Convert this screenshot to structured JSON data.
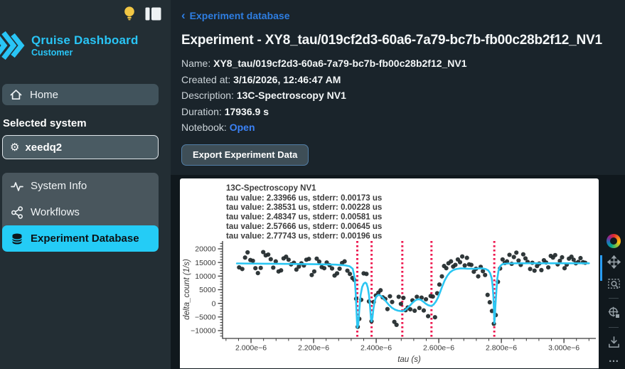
{
  "app": {
    "name": "Qruise Dashboard",
    "audience": "Customer"
  },
  "sidebar": {
    "home": "Home",
    "selected_system_label": "Selected system",
    "system_value": "xeedq2",
    "nav": [
      {
        "label": "System Info",
        "active": false
      },
      {
        "label": "Workflows",
        "active": false
      },
      {
        "label": "Experiment Database",
        "active": true
      }
    ]
  },
  "header": {
    "back": "‹",
    "breadcrumb": "Experiment database",
    "title": "Experiment - XY8_tau/019cf2d3-60a6-7a79-bc7b-fb00c28b2f12_NV1"
  },
  "meta": {
    "name": {
      "label": "Name:",
      "value": "XY8_tau/019cf2d3-60a6-7a79-bc7b-fb00c28b2f12_NV1"
    },
    "created": {
      "label": "Created at:",
      "value": "3/16/2026, 12:46:47 AM"
    },
    "description": {
      "label": "Description:",
      "value": "13C-Spectroscopy NV1"
    },
    "duration": {
      "label": "Duration:",
      "value": "17936.9 s"
    },
    "notebook": {
      "label": "Notebook:",
      "link": "Open"
    }
  },
  "actions": {
    "export": "Export Experiment Data"
  },
  "chart_toolbar": {
    "icons": [
      "plotly-logo",
      "pan",
      "box-zoom",
      "zoom-reset",
      "download"
    ],
    "more": "…"
  },
  "colors": {
    "accent": "#24ccf6",
    "link": "#3b82f6",
    "vline": "#ed174f",
    "fit": "#2bc6f2",
    "scatter": "#20292b"
  },
  "chart_data": {
    "type": "scatter",
    "title": "13C-Spectroscopy NV1",
    "annotations": [
      "tau value: 2.33966 us, stderr: 0.00173 us",
      "tau value: 2.38531 us, stderr: 0.00228 us",
      "tau value: 2.48347 us, stderr: 0.00581 us",
      "tau value: 2.57666 us, stderr: 0.00645 us",
      "tau value: 2.77743 us, stderr: 0.00196 us"
    ],
    "xlabel": "tau (s)",
    "ylabel": "delta_count (1/s)",
    "xlim_us": [
      1.909,
      3.102
    ],
    "ylim": [
      -12870,
      22870
    ],
    "x_ticks": [
      {
        "v": 2.0,
        "label": "2.000e−6"
      },
      {
        "v": 2.2,
        "label": "2.200e−6"
      },
      {
        "v": 2.4,
        "label": "2.400e−6"
      },
      {
        "v": 2.6,
        "label": "2.600e−6"
      },
      {
        "v": 2.8,
        "label": "2.800e−6"
      },
      {
        "v": 3.0,
        "label": "3.000e−6"
      }
    ],
    "x_minor_step_us": 0.04,
    "y_ticks": [
      {
        "v": -10000,
        "label": "−10000"
      },
      {
        "v": -5000,
        "label": "−5000"
      },
      {
        "v": 0,
        "label": "0"
      },
      {
        "v": 5000,
        "label": "5000"
      },
      {
        "v": 10000,
        "label": "10000"
      },
      {
        "v": 15000,
        "label": "15000"
      },
      {
        "v": 20000,
        "label": "20000"
      }
    ],
    "y_minor_step": 1000,
    "fit_tau_lines_us": [
      2.33966,
      2.38531,
      2.48347,
      2.57666,
      2.77743
    ],
    "scatter_points_us": [
      [
        1.962,
        13200
      ],
      [
        1.972,
        12600
      ],
      [
        1.981,
        16800
      ],
      [
        1.989,
        18700
      ],
      [
        1.998,
        15900
      ],
      [
        2.006,
        15600
      ],
      [
        2.014,
        12900
      ],
      [
        2.022,
        11100
      ],
      [
        2.031,
        13000
      ],
      [
        2.039,
        18800
      ],
      [
        2.047,
        17600
      ],
      [
        2.055,
        17900
      ],
      [
        2.063,
        16200
      ],
      [
        2.071,
        13100
      ],
      [
        2.079,
        15400
      ],
      [
        2.088,
        11700
      ],
      [
        2.096,
        12100
      ],
      [
        2.104,
        16500
      ],
      [
        2.112,
        17100
      ],
      [
        2.12,
        16000
      ],
      [
        2.128,
        14300
      ],
      [
        2.137,
        14900
      ],
      [
        2.145,
        12400
      ],
      [
        2.153,
        13500
      ],
      [
        2.161,
        14700
      ],
      [
        2.169,
        13900
      ],
      [
        2.177,
        16000
      ],
      [
        2.185,
        16300
      ],
      [
        2.194,
        10400
      ],
      [
        2.202,
        11700
      ],
      [
        2.21,
        16400
      ],
      [
        2.218,
        15300
      ],
      [
        2.226,
        13300
      ],
      [
        2.234,
        12900
      ],
      [
        2.242,
        15000
      ],
      [
        2.251,
        14000
      ],
      [
        2.259,
        12800
      ],
      [
        2.267,
        10200
      ],
      [
        2.275,
        11000
      ],
      [
        2.283,
        12700
      ],
      [
        2.291,
        14800
      ],
      [
        2.299,
        15400
      ],
      [
        2.308,
        12000
      ],
      [
        2.316,
        10800
      ],
      [
        2.324,
        9300
      ],
      [
        2.33,
        8600
      ],
      [
        2.336,
        1700
      ],
      [
        2.341,
        -8600
      ],
      [
        2.346,
        -5700
      ],
      [
        2.352,
        1300
      ],
      [
        2.36,
        11000
      ],
      [
        2.369,
        10800
      ],
      [
        2.377,
        700
      ],
      [
        2.385,
        -6600
      ],
      [
        2.392,
        500
      ],
      [
        2.399,
        2900
      ],
      [
        2.407,
        3900
      ],
      [
        2.414,
        4800
      ],
      [
        2.421,
        2200
      ],
      [
        2.429,
        1600
      ],
      [
        2.436,
        -2100
      ],
      [
        2.444,
        2600
      ],
      [
        2.451,
        500
      ],
      [
        2.458,
        -6800
      ],
      [
        2.465,
        -7900
      ],
      [
        2.472,
        2400
      ],
      [
        2.479,
        -200
      ],
      [
        2.487,
        2000
      ],
      [
        2.494,
        -2500
      ],
      [
        2.501,
        -1500
      ],
      [
        2.509,
        -2200
      ],
      [
        2.516,
        1100
      ],
      [
        2.523,
        -2700
      ],
      [
        2.53,
        2400
      ],
      [
        2.538,
        -1700
      ],
      [
        2.545,
        2100
      ],
      [
        2.552,
        -2600
      ],
      [
        2.559,
        1500
      ],
      [
        2.566,
        -4700
      ],
      [
        2.574,
        2700
      ],
      [
        2.581,
        2500
      ],
      [
        2.588,
        -5100
      ],
      [
        2.595,
        3700
      ],
      [
        2.602,
        6900
      ],
      [
        2.61,
        9900
      ],
      [
        2.617,
        13700
      ],
      [
        2.624,
        12900
      ],
      [
        2.631,
        14700
      ],
      [
        2.639,
        15400
      ],
      [
        2.646,
        13500
      ],
      [
        2.653,
        14100
      ],
      [
        2.661,
        16100
      ],
      [
        2.668,
        15100
      ],
      [
        2.675,
        17200
      ],
      [
        2.683,
        13900
      ],
      [
        2.69,
        16700
      ],
      [
        2.697,
        14300
      ],
      [
        2.704,
        14100
      ],
      [
        2.712,
        11600
      ],
      [
        2.719,
        12700
      ],
      [
        2.726,
        9900
      ],
      [
        2.734,
        13400
      ],
      [
        2.741,
        11800
      ],
      [
        2.748,
        10400
      ],
      [
        2.756,
        3100
      ],
      [
        2.763,
        400
      ],
      [
        2.77,
        -2800
      ],
      [
        2.776,
        -7500
      ],
      [
        2.782,
        -4300
      ],
      [
        2.789,
        7900
      ],
      [
        2.796,
        12800
      ],
      [
        2.804,
        16100
      ],
      [
        2.811,
        14800
      ],
      [
        2.818,
        15400
      ],
      [
        2.826,
        17800
      ],
      [
        2.833,
        14500
      ],
      [
        2.84,
        17000
      ],
      [
        2.848,
        18600
      ],
      [
        2.855,
        15700
      ],
      [
        2.862,
        14100
      ],
      [
        2.87,
        18000
      ],
      [
        2.877,
        16500
      ],
      [
        2.884,
        15200
      ],
      [
        2.892,
        12600
      ],
      [
        2.899,
        14900
      ],
      [
        2.906,
        12000
      ],
      [
        2.914,
        13700
      ],
      [
        2.921,
        14600
      ],
      [
        2.928,
        12200
      ],
      [
        2.936,
        15800
      ],
      [
        2.943,
        15000
      ],
      [
        2.95,
        13200
      ],
      [
        2.958,
        17400
      ],
      [
        2.965,
        16800
      ],
      [
        2.972,
        17700
      ],
      [
        2.98,
        14300
      ],
      [
        2.987,
        15600
      ],
      [
        2.994,
        16900
      ],
      [
        3.002,
        12900
      ],
      [
        3.009,
        14200
      ],
      [
        3.016,
        16400
      ],
      [
        3.024,
        17100
      ],
      [
        3.031,
        16000
      ],
      [
        3.038,
        14700
      ],
      [
        3.046,
        15200
      ],
      [
        3.053,
        16600
      ],
      [
        3.061,
        15100
      ],
      [
        3.068,
        14900
      ]
    ],
    "fit_curve_us": [
      [
        1.955,
        14650
      ],
      [
        2.05,
        14550
      ],
      [
        2.15,
        14450
      ],
      [
        2.22,
        14350
      ],
      [
        2.27,
        14200
      ],
      [
        2.3,
        13950
      ],
      [
        2.315,
        13600
      ],
      [
        2.325,
        12700
      ],
      [
        2.331,
        9500
      ],
      [
        2.3345,
        4000
      ],
      [
        2.337,
        -2500
      ],
      [
        2.3397,
        -8900
      ],
      [
        2.3425,
        -8000
      ],
      [
        2.346,
        -2500
      ],
      [
        2.35,
        3000
      ],
      [
        2.355,
        6000
      ],
      [
        2.36,
        7200
      ],
      [
        2.365,
        7600
      ],
      [
        2.369,
        7300
      ],
      [
        2.373,
        5800
      ],
      [
        2.377,
        3000
      ],
      [
        2.3805,
        -1500
      ],
      [
        2.3835,
        -5800
      ],
      [
        2.3853,
        -6600
      ],
      [
        2.388,
        -5300
      ],
      [
        2.391,
        -2200
      ],
      [
        2.395,
        800
      ],
      [
        2.4,
        2500
      ],
      [
        2.406,
        3100
      ],
      [
        2.413,
        2900
      ],
      [
        2.421,
        2100
      ],
      [
        2.43,
        900
      ],
      [
        2.44,
        -500
      ],
      [
        2.45,
        -1600
      ],
      [
        2.46,
        -2300
      ],
      [
        2.47,
        -2700
      ],
      [
        2.4835,
        -2900
      ],
      [
        2.492,
        -2500
      ],
      [
        2.5,
        -1700
      ],
      [
        2.508,
        -800
      ],
      [
        2.516,
        200
      ],
      [
        2.523,
        900
      ],
      [
        2.53,
        1400
      ],
      [
        2.537,
        1500
      ],
      [
        2.544,
        1200
      ],
      [
        2.551,
        600
      ],
      [
        2.558,
        -100
      ],
      [
        2.565,
        -600
      ],
      [
        2.571,
        -850
      ],
      [
        2.5767,
        -900
      ],
      [
        2.583,
        -500
      ],
      [
        2.59,
        500
      ],
      [
        2.597,
        2000
      ],
      [
        2.604,
        4000
      ],
      [
        2.611,
        6200
      ],
      [
        2.619,
        8400
      ],
      [
        2.627,
        10100
      ],
      [
        2.636,
        11400
      ],
      [
        2.646,
        12200
      ],
      [
        2.656,
        12600
      ],
      [
        2.668,
        12800
      ],
      [
        2.68,
        12800
      ],
      [
        2.692,
        12700
      ],
      [
        2.704,
        12700
      ],
      [
        2.716,
        12700
      ],
      [
        2.728,
        12800
      ],
      [
        2.74,
        12800
      ],
      [
        2.75,
        12600
      ],
      [
        2.758,
        12100
      ],
      [
        2.764,
        11100
      ],
      [
        2.769,
        9200
      ],
      [
        2.772,
        6500
      ],
      [
        2.7745,
        2500
      ],
      [
        2.7763,
        -2500
      ],
      [
        2.7774,
        -7300
      ],
      [
        2.7789,
        -5800
      ],
      [
        2.781,
        -1000
      ],
      [
        2.784,
        4500
      ],
      [
        2.787,
        9000
      ],
      [
        2.791,
        12000
      ],
      [
        2.796,
        13600
      ],
      [
        2.802,
        14300
      ],
      [
        2.81,
        14550
      ],
      [
        2.825,
        14650
      ],
      [
        2.85,
        14700
      ],
      [
        2.9,
        14700
      ],
      [
        2.95,
        14700
      ],
      [
        3.0,
        14700
      ],
      [
        3.05,
        14700
      ],
      [
        3.08,
        14700
      ]
    ]
  }
}
